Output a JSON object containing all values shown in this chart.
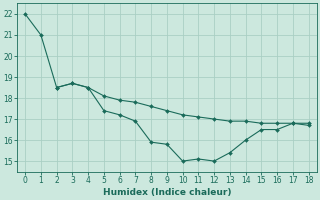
{
  "line1_x": [
    0,
    1,
    2,
    3,
    4,
    5,
    6,
    7,
    8,
    9,
    10,
    11,
    12,
    13,
    14,
    15,
    16,
    17,
    18
  ],
  "line1_y": [
    22.0,
    21.0,
    18.5,
    18.7,
    18.5,
    17.4,
    17.2,
    16.9,
    15.9,
    15.8,
    15.0,
    15.1,
    15.0,
    15.4,
    16.0,
    16.5,
    16.5,
    16.8,
    16.8
  ],
  "line2_x": [
    2,
    3,
    4,
    5,
    6,
    7,
    8,
    9,
    10,
    11,
    12,
    13,
    14,
    15,
    16,
    17,
    18
  ],
  "line2_y": [
    18.5,
    18.7,
    18.5,
    18.1,
    17.9,
    17.8,
    17.6,
    17.4,
    17.2,
    17.1,
    17.0,
    16.9,
    16.9,
    16.8,
    16.8,
    16.8,
    16.7
  ],
  "line_color": "#1a6b5a",
  "bg_color": "#cce8de",
  "grid_color": "#aacfc4",
  "xlabel": "Humidex (Indice chaleur)",
  "xlim": [
    -0.5,
    18.5
  ],
  "ylim": [
    14.5,
    22.5
  ],
  "yticks": [
    15,
    16,
    17,
    18,
    19,
    20,
    21,
    22
  ],
  "xticks": [
    0,
    1,
    2,
    3,
    4,
    5,
    6,
    7,
    8,
    9,
    10,
    11,
    12,
    13,
    14,
    15,
    16,
    17,
    18
  ],
  "tick_fontsize": 5.5,
  "xlabel_fontsize": 6.5
}
